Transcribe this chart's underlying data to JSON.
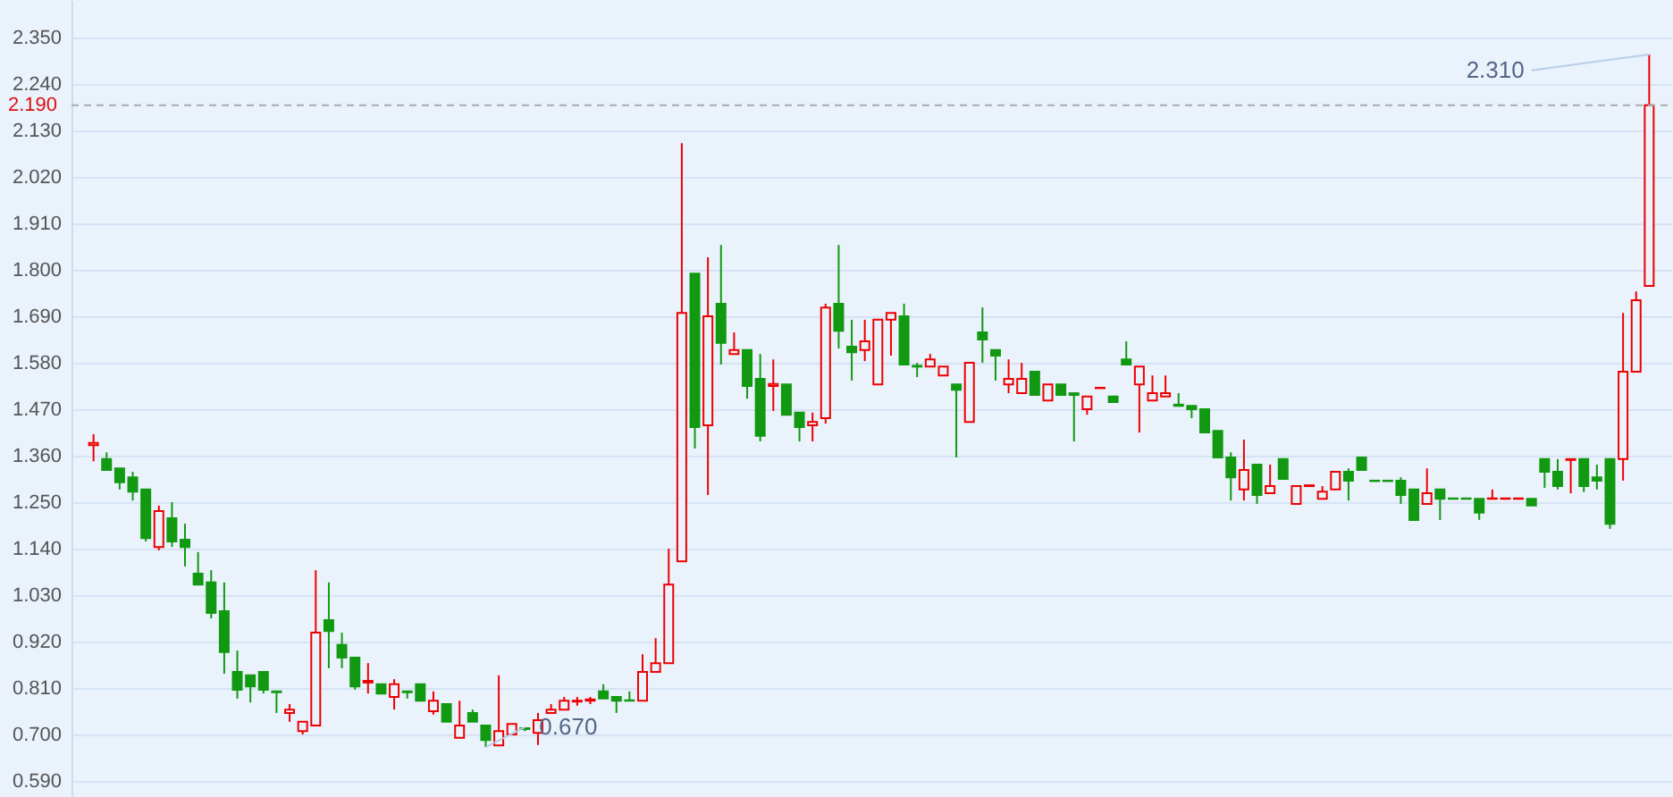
{
  "chart_data": {
    "type": "candlestick",
    "categories": [
      null,
      null,
      null,
      null,
      null,
      null,
      null,
      null,
      null,
      null,
      null,
      null,
      null,
      null,
      null,
      null,
      null,
      null,
      null,
      null,
      null,
      null,
      null,
      null,
      null,
      null,
      null,
      null,
      null,
      null,
      null,
      null,
      null,
      null,
      null,
      null,
      null,
      null,
      null,
      null,
      null,
      null,
      null,
      null,
      null,
      null,
      null,
      null,
      null,
      null,
      null,
      null,
      null,
      null,
      null,
      null,
      null,
      null,
      null,
      null,
      null,
      null,
      null,
      null,
      null,
      null,
      null,
      null,
      null,
      null,
      null,
      null,
      null,
      null,
      null,
      null,
      null,
      null,
      null,
      null,
      null,
      null,
      null,
      null,
      null,
      null,
      null,
      null,
      null,
      null,
      null,
      null,
      null,
      null,
      null,
      null,
      null,
      null,
      null,
      null,
      null,
      null,
      null,
      null,
      null,
      null,
      null,
      null,
      null,
      null,
      null,
      null,
      null,
      null,
      null,
      null,
      null,
      null,
      null,
      null
    ],
    "ohlc": [
      [
        1.385,
        1.411,
        1.347,
        1.39
      ],
      [
        1.352,
        1.368,
        1.326,
        1.326
      ],
      [
        1.33,
        1.33,
        1.28,
        1.297
      ],
      [
        1.309,
        1.322,
        1.254,
        1.275
      ],
      [
        1.28,
        1.28,
        1.157,
        1.165
      ],
      [
        1.144,
        1.242,
        1.136,
        1.229
      ],
      [
        1.212,
        1.25,
        1.144,
        1.157
      ],
      [
        1.161,
        1.199,
        1.098,
        1.144
      ],
      [
        1.081,
        1.132,
        1.055,
        1.055
      ],
      [
        1.06,
        1.089,
        0.975,
        0.988
      ],
      [
        0.992,
        1.06,
        0.844,
        0.895
      ],
      [
        0.848,
        0.899,
        0.785,
        0.806
      ],
      [
        0.84,
        0.84,
        0.776,
        0.814
      ],
      [
        0.848,
        0.848,
        0.797,
        0.806
      ],
      [
        0.802,
        0.802,
        0.751,
        0.8
      ],
      [
        0.751,
        0.772,
        0.73,
        0.759
      ],
      [
        0.708,
        0.73,
        0.7,
        0.73
      ],
      [
        0.721,
        1.089,
        0.721,
        0.941
      ],
      [
        0.971,
        1.06,
        0.857,
        0.945
      ],
      [
        0.912,
        0.941,
        0.857,
        0.882
      ],
      [
        0.882,
        0.882,
        0.806,
        0.814
      ],
      [
        0.823,
        0.869,
        0.797,
        0.827
      ],
      [
        0.819,
        0.819,
        0.797,
        0.797
      ],
      [
        0.789,
        0.831,
        0.759,
        0.819
      ],
      [
        0.802,
        0.802,
        0.785,
        0.8
      ],
      [
        0.819,
        0.819,
        0.78,
        0.78
      ],
      [
        0.755,
        0.802,
        0.747,
        0.78
      ],
      [
        0.772,
        0.772,
        0.73,
        0.73
      ],
      [
        0.692,
        0.78,
        0.692,
        0.721
      ],
      [
        0.751,
        0.759,
        0.73,
        0.73
      ],
      [
        0.721,
        0.721,
        0.67,
        0.687
      ],
      [
        0.674,
        0.84,
        0.674,
        0.708
      ],
      [
        0.7,
        0.725,
        0.7,
        0.725
      ],
      [
        0.715,
        0.717,
        0.708,
        0.713
      ],
      [
        0.704,
        0.751,
        0.675,
        0.734
      ],
      [
        0.751,
        0.772,
        0.751,
        0.759
      ],
      [
        0.759,
        0.789,
        0.759,
        0.78
      ],
      [
        0.778,
        0.789,
        0.768,
        0.78
      ],
      [
        0.78,
        0.789,
        0.772,
        0.783
      ],
      [
        0.802,
        0.819,
        0.785,
        0.785
      ],
      [
        0.789,
        0.789,
        0.751,
        0.78
      ],
      [
        0.781,
        0.802,
        0.78,
        0.78
      ],
      [
        0.78,
        0.89,
        0.78,
        0.848
      ],
      [
        0.848,
        0.928,
        0.848,
        0.869
      ],
      [
        0.869,
        1.14,
        0.869,
        1.055
      ],
      [
        1.11,
        2.1,
        1.11,
        1.698
      ],
      [
        1.791,
        1.791,
        1.377,
        1.428
      ],
      [
        1.432,
        1.83,
        1.267,
        1.69
      ],
      [
        1.72,
        1.859,
        1.576,
        1.627
      ],
      [
        1.601,
        1.652,
        1.601,
        1.61
      ],
      [
        1.61,
        1.61,
        1.495,
        1.525
      ],
      [
        1.542,
        1.601,
        1.394,
        1.407
      ],
      [
        1.525,
        1.588,
        1.466,
        1.53
      ],
      [
        1.529,
        1.529,
        1.457,
        1.457
      ],
      [
        1.462,
        1.462,
        1.394,
        1.428
      ],
      [
        1.432,
        1.462,
        1.394,
        1.44
      ],
      [
        1.449,
        1.72,
        1.436,
        1.711
      ],
      [
        1.72,
        1.859,
        1.614,
        1.656
      ],
      [
        1.618,
        1.682,
        1.538,
        1.605
      ],
      [
        1.61,
        1.682,
        1.584,
        1.631
      ],
      [
        1.529,
        1.682,
        1.529,
        1.682
      ],
      [
        1.682,
        1.698,
        1.597,
        1.698
      ],
      [
        1.69,
        1.72,
        1.576,
        1.576
      ],
      [
        1.573,
        1.58,
        1.546,
        1.571
      ],
      [
        1.571,
        1.601,
        1.571,
        1.588
      ],
      [
        1.55,
        1.571,
        1.55,
        1.571
      ],
      [
        1.529,
        1.529,
        1.356,
        1.516
      ],
      [
        1.44,
        1.58,
        1.44,
        1.58
      ],
      [
        1.652,
        1.711,
        1.58,
        1.635
      ],
      [
        1.61,
        1.61,
        1.538,
        1.597
      ],
      [
        1.529,
        1.588,
        1.508,
        1.542
      ],
      [
        1.508,
        1.58,
        1.508,
        1.542
      ],
      [
        1.559,
        1.559,
        1.504,
        1.504
      ],
      [
        1.491,
        1.529,
        1.491,
        1.529
      ],
      [
        1.529,
        1.529,
        1.504,
        1.504
      ],
      [
        1.508,
        1.508,
        1.394,
        1.504
      ],
      [
        1.47,
        1.5,
        1.457,
        1.5
      ],
      [
        1.52,
        1.521,
        1.52,
        1.521
      ],
      [
        1.5,
        1.5,
        1.487,
        1.487
      ],
      [
        1.588,
        1.631,
        1.576,
        1.576
      ],
      [
        1.529,
        1.571,
        1.415,
        1.571
      ],
      [
        1.491,
        1.55,
        1.491,
        1.508
      ],
      [
        1.5,
        1.55,
        1.5,
        1.508
      ],
      [
        1.481,
        1.508,
        1.478,
        1.478
      ],
      [
        1.478,
        1.478,
        1.449,
        1.47
      ],
      [
        1.47,
        1.47,
        1.415,
        1.415
      ],
      [
        1.419,
        1.419,
        1.356,
        1.356
      ],
      [
        1.356,
        1.368,
        1.254,
        1.309
      ],
      [
        1.28,
        1.398,
        1.254,
        1.326
      ],
      [
        1.339,
        1.339,
        1.246,
        1.267
      ],
      [
        1.271,
        1.339,
        1.271,
        1.288
      ],
      [
        1.352,
        1.352,
        1.305,
        1.305
      ],
      [
        1.246,
        1.288,
        1.246,
        1.288
      ],
      [
        1.288,
        1.29,
        1.288,
        1.29
      ],
      [
        1.258,
        1.288,
        1.258,
        1.275
      ],
      [
        1.28,
        1.322,
        1.28,
        1.322
      ],
      [
        1.322,
        1.33,
        1.254,
        1.301
      ],
      [
        1.356,
        1.356,
        1.326,
        1.326
      ],
      [
        1.301,
        1.301,
        1.3,
        1.3
      ],
      [
        1.301,
        1.301,
        1.3,
        1.3
      ],
      [
        1.301,
        1.309,
        1.246,
        1.267
      ],
      [
        1.28,
        1.28,
        1.208,
        1.208
      ],
      [
        1.246,
        1.33,
        1.246,
        1.271
      ],
      [
        1.28,
        1.28,
        1.208,
        1.258
      ],
      [
        1.259,
        1.259,
        1.258,
        1.258
      ],
      [
        1.259,
        1.259,
        1.258,
        1.258
      ],
      [
        1.258,
        1.258,
        1.208,
        1.225
      ],
      [
        1.258,
        1.28,
        1.258,
        1.259
      ],
      [
        1.258,
        1.259,
        1.258,
        1.259
      ],
      [
        1.258,
        1.259,
        1.258,
        1.259
      ],
      [
        1.258,
        1.258,
        1.242,
        1.242
      ],
      [
        1.352,
        1.352,
        1.284,
        1.322
      ],
      [
        1.322,
        1.352,
        1.28,
        1.288
      ],
      [
        1.35,
        1.352,
        1.271,
        1.352
      ],
      [
        1.352,
        1.352,
        1.274,
        1.288
      ],
      [
        1.309,
        1.339,
        1.28,
        1.301
      ],
      [
        1.352,
        1.352,
        1.187,
        1.199
      ],
      [
        1.352,
        1.698,
        1.301,
        1.559
      ],
      [
        1.559,
        1.749,
        1.559,
        1.728
      ],
      [
        1.762,
        2.31,
        1.762,
        2.19
      ]
    ],
    "colors": [
      "#ee0000",
      "#119911",
      "#119911",
      "#119911",
      "#119911",
      "#ee0000",
      "#119911",
      "#119911",
      "#119911",
      "#119911",
      "#119911",
      "#119911",
      "#119911",
      "#119911",
      "#119911",
      "#ee0000",
      "#ee0000",
      "#ee0000",
      "#119911",
      "#119911",
      "#119911",
      "#ee0000",
      "#119911",
      "#ee0000",
      "#119911",
      "#119911",
      "#ee0000",
      "#119911",
      "#ee0000",
      "#119911",
      "#119911",
      "#ee0000",
      "#ee0000",
      "#119911",
      "#ee0000",
      "#ee0000",
      "#ee0000",
      "#ee0000",
      "#ee0000",
      "#119911",
      "#119911",
      "#119911",
      "#ee0000",
      "#ee0000",
      "#ee0000",
      "#ee0000",
      "#119911",
      "#ee0000",
      "#119911",
      "#ee0000",
      "#119911",
      "#119911",
      "#ee0000",
      "#119911",
      "#119911",
      "#ee0000",
      "#ee0000",
      "#119911",
      "#119911",
      "#ee0000",
      "#ee0000",
      "#ee0000",
      "#119911",
      "#119911",
      "#ee0000",
      "#ee0000",
      "#119911",
      "#ee0000",
      "#119911",
      "#119911",
      "#ee0000",
      "#ee0000",
      "#119911",
      "#ee0000",
      "#119911",
      "#119911",
      "#ee0000",
      "#ee0000",
      "#119911",
      "#119911",
      "#ee0000",
      "#ee0000",
      "#ee0000",
      "#119911",
      "#119911",
      "#119911",
      "#119911",
      "#119911",
      "#ee0000",
      "#119911",
      "#ee0000",
      "#119911",
      "#ee0000",
      "#ee0000",
      "#ee0000",
      "#ee0000",
      "#119911",
      "#119911",
      "#119911",
      "#119911",
      "#119911",
      "#119911",
      "#ee0000",
      "#119911",
      "#119911",
      "#119911",
      "#119911",
      "#ee0000",
      "#ee0000",
      "#ee0000",
      "#119911",
      "#119911",
      "#119911",
      "#ee0000",
      "#119911",
      "#119911",
      "#119911",
      "#ee0000",
      "#ee0000",
      "#ee0000"
    ],
    "ylim": [
      0.552,
      2.439
    ],
    "yticks": [
      {
        "value": 0.59,
        "label": "0.590"
      },
      {
        "value": 0.7,
        "label": "0.700"
      },
      {
        "value": 0.81,
        "label": "0.810"
      },
      {
        "value": 0.92,
        "label": "0.920"
      },
      {
        "value": 1.03,
        "label": "1.030"
      },
      {
        "value": 1.14,
        "label": "1.140"
      },
      {
        "value": 1.25,
        "label": "1.250"
      },
      {
        "value": 1.36,
        "label": "1.360"
      },
      {
        "value": 1.47,
        "label": "1.470"
      },
      {
        "value": 1.58,
        "label": "1.580"
      },
      {
        "value": 1.69,
        "label": "1.690"
      },
      {
        "value": 1.8,
        "label": "1.800"
      },
      {
        "value": 1.91,
        "label": "1.910"
      },
      {
        "value": 2.02,
        "label": "2.020"
      },
      {
        "value": 2.13,
        "label": "2.130"
      },
      {
        "value": 2.24,
        "label": "2.240"
      },
      {
        "value": 2.35,
        "label": "2.350"
      }
    ],
    "grid": "y",
    "legend": false,
    "ref_lines": [
      {
        "axis": "y",
        "value": 2.19,
        "label": "2.190",
        "color": "#aaaaaa",
        "line_style": "dashed"
      }
    ],
    "annotations": [
      "2.310",
      "0.670"
    ]
  }
}
